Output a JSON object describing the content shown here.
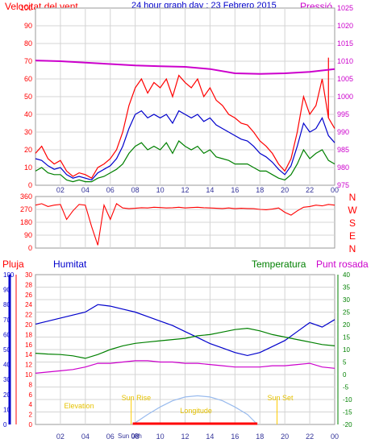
{
  "title": "24 hour graph day : 23 Febrero 2015",
  "xticks": [
    "02",
    "04",
    "06",
    "08",
    "10",
    "12",
    "14",
    "16",
    "18",
    "20",
    "22",
    "00"
  ],
  "colors": {
    "red": "#ff0000",
    "blue": "#0000cc",
    "green": "#008000",
    "magenta": "#cc00cc",
    "grid": "#d4d4d4",
    "orange": "#ff8000"
  },
  "chart_data": [
    {
      "type": "line",
      "left_label": "Velocitat del vent",
      "right_label": "Pressió",
      "left_ticks": [
        "0",
        "10",
        "20",
        "30",
        "40",
        "50",
        "60",
        "70",
        "80",
        "90",
        "100"
      ],
      "right_ticks": [
        "975",
        "980",
        "985",
        "990",
        "995",
        "1000",
        "1005",
        "1010",
        "1015",
        "1020",
        "1025"
      ],
      "ylim_left": [
        0,
        100
      ],
      "ylim_right": [
        975,
        1025
      ],
      "x_hours": [
        0,
        24
      ],
      "series": [
        {
          "color": "red",
          "axis": "left",
          "x": [
            0,
            0.5,
            1,
            1.5,
            2,
            2.5,
            3,
            3.5,
            4,
            4.5,
            5,
            5.5,
            6,
            6.5,
            7,
            7.5,
            8,
            8.5,
            9,
            9.5,
            10,
            10.5,
            11,
            11.5,
            12,
            12.5,
            13,
            13.5,
            14,
            14.5,
            15,
            15.5,
            16,
            16.5,
            17,
            17.5,
            18,
            18.5,
            19,
            19.5,
            20,
            20.5,
            21,
            21.5,
            22,
            22.5,
            23,
            23.5,
            24
          ],
          "y": [
            18,
            22,
            15,
            12,
            14,
            8,
            5,
            7,
            6,
            4,
            10,
            12,
            15,
            20,
            30,
            45,
            55,
            60,
            52,
            58,
            55,
            60,
            50,
            62,
            58,
            55,
            60,
            50,
            55,
            48,
            45,
            40,
            38,
            35,
            34,
            30,
            25,
            22,
            18,
            12,
            8,
            15,
            30,
            50,
            40,
            45,
            60,
            38,
            32
          ],
          "spike_x": 23.5,
          "spike_y": 72
        },
        {
          "color": "blue",
          "axis": "left",
          "x": [
            0,
            0.5,
            1,
            1.5,
            2,
            2.5,
            3,
            3.5,
            4,
            4.5,
            5,
            5.5,
            6,
            6.5,
            7,
            7.5,
            8,
            8.5,
            9,
            9.5,
            10,
            10.5,
            11,
            11.5,
            12,
            12.5,
            13,
            13.5,
            14,
            14.5,
            15,
            15.5,
            16,
            16.5,
            17,
            17.5,
            18,
            18.5,
            19,
            19.5,
            20,
            20.5,
            21,
            21.5,
            22,
            22.5,
            23,
            23.5,
            24
          ],
          "y": [
            15,
            14,
            11,
            9,
            10,
            6,
            4,
            5,
            4,
            3,
            7,
            9,
            11,
            15,
            22,
            32,
            40,
            42,
            38,
            40,
            38,
            40,
            35,
            42,
            40,
            38,
            40,
            36,
            38,
            34,
            32,
            30,
            28,
            26,
            25,
            22,
            18,
            16,
            13,
            9,
            6,
            11,
            22,
            35,
            30,
            32,
            38,
            28,
            24
          ]
        },
        {
          "color": "green",
          "axis": "left",
          "x": [
            0,
            0.5,
            1,
            1.5,
            2,
            2.5,
            3,
            3.5,
            4,
            4.5,
            5,
            5.5,
            6,
            6.5,
            7,
            7.5,
            8,
            8.5,
            9,
            9.5,
            10,
            10.5,
            11,
            11.5,
            12,
            12.5,
            13,
            13.5,
            14,
            14.5,
            15,
            15.5,
            16,
            16.5,
            17,
            17.5,
            18,
            18.5,
            19,
            19.5,
            20,
            20.5,
            21,
            21.5,
            22,
            22.5,
            23,
            23.5,
            24
          ],
          "y": [
            8,
            10,
            7,
            6,
            6,
            3,
            2,
            3,
            2,
            2,
            4,
            5,
            7,
            9,
            12,
            18,
            22,
            24,
            20,
            22,
            20,
            24,
            18,
            25,
            22,
            20,
            22,
            18,
            20,
            16,
            15,
            14,
            12,
            12,
            12,
            10,
            8,
            8,
            6,
            4,
            3,
            6,
            12,
            20,
            15,
            18,
            20,
            14,
            12
          ]
        },
        {
          "color": "magenta",
          "axis": "right",
          "x": [
            0,
            2,
            4,
            6,
            8,
            10,
            12,
            14,
            16,
            18,
            20,
            22,
            24
          ],
          "y": [
            1010.2,
            1010,
            1009.6,
            1009.2,
            1008.8,
            1008.6,
            1008.4,
            1007.8,
            1006.6,
            1006.4,
            1006.6,
            1007,
            1007.8
          ]
        }
      ]
    },
    {
      "type": "scatter",
      "left_ticks": [
        "0",
        "90",
        "180",
        "270",
        "360"
      ],
      "right_ticks": [
        "N",
        "W",
        "S",
        "E",
        "N"
      ],
      "ylim": [
        0,
        360
      ],
      "series": [
        {
          "color": "red",
          "x": [
            0,
            0.5,
            1,
            1.5,
            2,
            2.5,
            3,
            3.5,
            4,
            4.5,
            5,
            5.5,
            6,
            6.5,
            7,
            7.5,
            8,
            8.5,
            9,
            9.5,
            10,
            10.5,
            11,
            11.5,
            12,
            12.5,
            13,
            13.5,
            14,
            14.5,
            15,
            15.5,
            16,
            16.5,
            17,
            17.5,
            18,
            18.5,
            19,
            19.5,
            20,
            20.5,
            21,
            21.5,
            22,
            22.5,
            23,
            23.5,
            24
          ],
          "y": [
            300,
            310,
            290,
            300,
            305,
            200,
            260,
            305,
            300,
            150,
            20,
            300,
            200,
            310,
            280,
            275,
            278,
            282,
            280,
            285,
            283,
            280,
            282,
            285,
            280,
            283,
            285,
            282,
            280,
            278,
            276,
            280,
            275,
            278,
            276,
            275,
            270,
            268,
            272,
            280,
            250,
            230,
            260,
            285,
            290,
            300,
            295,
            305,
            300
          ]
        }
      ]
    },
    {
      "type": "line",
      "left_label_1": "Pluja",
      "left_label_2": "Humitat",
      "right_label_1": "Temperatura",
      "right_label_2": "Punt rosada",
      "pluja_ticks": [
        "0",
        "2",
        "4",
        "6",
        "8",
        "10",
        "12",
        "14",
        "16",
        "18",
        "20",
        "22",
        "24",
        "26",
        "28",
        "30"
      ],
      "humitat_ticks": [
        "0",
        "10",
        "20",
        "30",
        "40",
        "50",
        "60",
        "70",
        "80",
        "90",
        "100"
      ],
      "temp_ticks": [
        "-20",
        "-15",
        "-10",
        "-5",
        "0",
        "5",
        "10",
        "15",
        "20",
        "25",
        "30",
        "35",
        "40"
      ],
      "ylim_humitat": [
        0,
        100
      ],
      "ylim_temp": [
        -20,
        40
      ],
      "annotations": [
        {
          "text": "Sun Rise",
          "x": 6.9
        },
        {
          "text": "Sun Set",
          "x": 18.6
        },
        {
          "text": "Elevation",
          "x": 2.3
        },
        {
          "text": "Sun 08h",
          "x": 6.6
        },
        {
          "text": "Longitude",
          "x": 11.6
        }
      ],
      "series": [
        {
          "name": "Humitat",
          "color": "blue",
          "axis": "humitat",
          "x": [
            0,
            1,
            2,
            3,
            4,
            5,
            6,
            7,
            8,
            9,
            10,
            11,
            12,
            13,
            14,
            15,
            16,
            17,
            18,
            19,
            20,
            21,
            22,
            23,
            24
          ],
          "y": [
            67,
            69,
            71,
            73,
            75,
            80,
            79,
            77,
            75,
            72,
            69,
            66,
            62,
            58,
            54,
            51,
            48,
            46,
            48,
            52,
            56,
            62,
            68,
            65,
            70
          ]
        },
        {
          "name": "Temperatura",
          "color": "green",
          "axis": "temp",
          "x": [
            0,
            1,
            2,
            3,
            4,
            5,
            6,
            7,
            8,
            9,
            10,
            11,
            12,
            13,
            14,
            15,
            16,
            17,
            18,
            19,
            20,
            21,
            22,
            23,
            24
          ],
          "y": [
            8.5,
            8.2,
            8,
            7.5,
            6.5,
            8,
            10,
            11.5,
            12.5,
            13,
            13.5,
            14,
            14.5,
            15.5,
            16,
            17,
            18,
            18.5,
            17.5,
            16,
            15,
            14,
            13,
            12,
            11.5
          ]
        },
        {
          "name": "Punt rosada",
          "color": "magenta",
          "axis": "temp",
          "x": [
            0,
            1,
            2,
            3,
            4,
            5,
            6,
            7,
            8,
            9,
            10,
            11,
            12,
            13,
            14,
            15,
            16,
            17,
            18,
            19,
            20,
            21,
            22,
            23,
            24
          ],
          "y": [
            0.5,
            1,
            1.5,
            2,
            3,
            4.5,
            4.5,
            5,
            5.5,
            5.5,
            5,
            5,
            4.5,
            4.5,
            4,
            3.5,
            3,
            3,
            3,
            3.5,
            3.5,
            4,
            4.5,
            3,
            2.5
          ]
        },
        {
          "name": "Sun elevation",
          "color": "lightblue",
          "axis": "temp",
          "x": [
            7.8,
            9,
            10,
            11,
            12,
            13,
            14,
            15,
            16,
            17,
            17.8
          ],
          "y": [
            -20,
            -16,
            -13,
            -10.5,
            -9,
            -8.5,
            -9,
            -10.5,
            -13,
            -16,
            -20
          ]
        }
      ],
      "rain_bar": {
        "x_start": 7.8,
        "x_end": 17.8
      }
    }
  ]
}
